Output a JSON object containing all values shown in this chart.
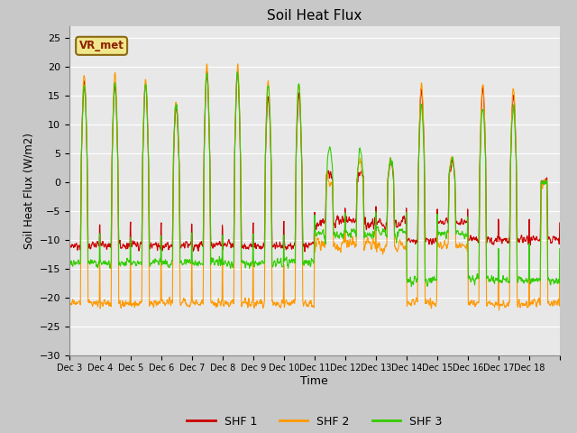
{
  "title": "Soil Heat Flux",
  "ylabel": "Soil Heat Flux (W/m2)",
  "xlabel": "Time",
  "ylim": [
    -30,
    27
  ],
  "yticks": [
    -30,
    -25,
    -20,
    -15,
    -10,
    -5,
    0,
    5,
    10,
    15,
    20,
    25
  ],
  "background_color": "#e8e8e8",
  "grid_color": "#ffffff",
  "line_colors": [
    "#cc0000",
    "#ff9900",
    "#33cc00"
  ],
  "series_labels": [
    "SHF 1",
    "SHF 2",
    "SHF 3"
  ],
  "legend_label": "VR_met",
  "start_day": 3,
  "end_day": 18
}
